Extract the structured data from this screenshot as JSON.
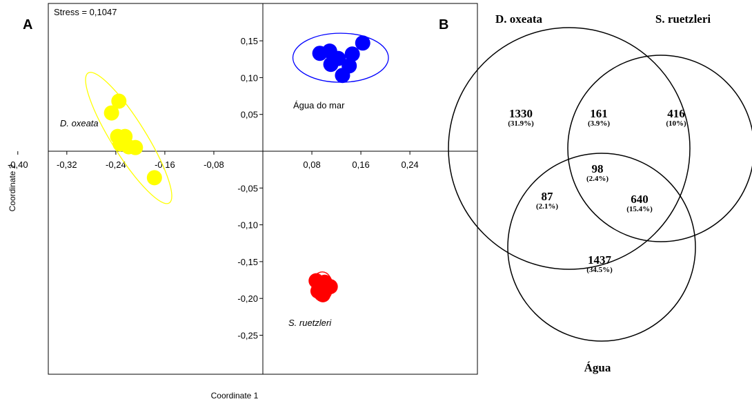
{
  "chart_data": [
    {
      "panel": "A",
      "type": "scatter",
      "annotation": "Stress = 0,1047",
      "xlabel": "Coordinate 1",
      "ylabel": "Coordinate 2",
      "xlim": [
        -0.4,
        0.4
      ],
      "ylim": [
        -0.3,
        0.19
      ],
      "x_ticks": [
        -0.4,
        -0.32,
        -0.24,
        -0.16,
        -0.08,
        0.08,
        0.16,
        0.24
      ],
      "x_tick_labels": [
        "-0,40",
        "-0,32",
        "-0,24",
        "-0,16",
        "-0,08",
        "0,08",
        "0,16",
        "0,24"
      ],
      "y_ticks": [
        0.15,
        0.1,
        0.05,
        -0.05,
        -0.1,
        -0.15,
        -0.2,
        -0.25
      ],
      "y_tick_labels": [
        "0,15",
        "0,10",
        "0,05",
        "-0,05",
        "-0,10",
        "-0,15",
        "-0,20",
        "-0,25"
      ],
      "series": [
        {
          "name": "D. oxeata",
          "italic": true,
          "color": "#ffff00",
          "ellipse_color": "#ffff00",
          "points": [
            [
              -0.235,
              0.068
            ],
            [
              -0.247,
              0.052
            ],
            [
              -0.237,
              0.02
            ],
            [
              -0.225,
              0.02
            ],
            [
              -0.233,
              0.01
            ],
            [
              -0.219,
              0.006
            ],
            [
              -0.208,
              0.005
            ],
            [
              -0.177,
              -0.036
            ]
          ],
          "ellipse": {
            "cx": -0.219,
            "cy": 0.018,
            "rx": 0.125,
            "ry": 0.028,
            "angle_deg": 58
          }
        },
        {
          "name": "Água do mar",
          "italic": false,
          "color": "#0000ff",
          "ellipse_color": "#0000ff",
          "points": [
            [
              0.163,
              0.147
            ],
            [
              0.109,
              0.136
            ],
            [
              0.093,
              0.133
            ],
            [
              0.146,
              0.132
            ],
            [
              0.123,
              0.126
            ],
            [
              0.111,
              0.118
            ],
            [
              0.141,
              0.116
            ],
            [
              0.13,
              0.103
            ]
          ],
          "ellipse": {
            "cx": 0.127,
            "cy": 0.127,
            "rx": 0.078,
            "ry": 0.04,
            "angle_deg": 0
          }
        },
        {
          "name": "S. ruetzleri",
          "italic": true,
          "color": "#ff0000",
          "ellipse_color": "#ff0000",
          "points": [
            [
              0.087,
              -0.176
            ],
            [
              0.101,
              -0.178
            ],
            [
              0.11,
              -0.184
            ],
            [
              0.09,
              -0.19
            ],
            [
              0.098,
              -0.195
            ]
          ],
          "ellipse": {
            "cx": 0.097,
            "cy": -0.184,
            "rx": 0.017,
            "ry": 0.024,
            "angle_deg": 0
          }
        }
      ]
    },
    {
      "panel": "B",
      "type": "venn",
      "sets": [
        "D. oxeata",
        "S. ruetzleri",
        "Água"
      ],
      "regions": [
        {
          "sets": [
            "D. oxeata"
          ],
          "count": "1330",
          "percent": "(31.9%)"
        },
        {
          "sets": [
            "D. oxeata",
            "S. ruetzleri"
          ],
          "count": "161",
          "percent": "(3.9%)"
        },
        {
          "sets": [
            "S. ruetzleri"
          ],
          "count": "416",
          "percent": "(10%)"
        },
        {
          "sets": [
            "D. oxeata",
            "S. ruetzleri",
            "Água"
          ],
          "count": "98",
          "percent": "(2.4%)"
        },
        {
          "sets": [
            "D. oxeata",
            "Água"
          ],
          "count": "87",
          "percent": "(2.1%)"
        },
        {
          "sets": [
            "S. ruetzleri",
            "Água"
          ],
          "count": "640",
          "percent": "(15.4%)"
        },
        {
          "sets": [
            "Água"
          ],
          "count": "1437",
          "percent": "(34.5%)"
        }
      ]
    }
  ]
}
